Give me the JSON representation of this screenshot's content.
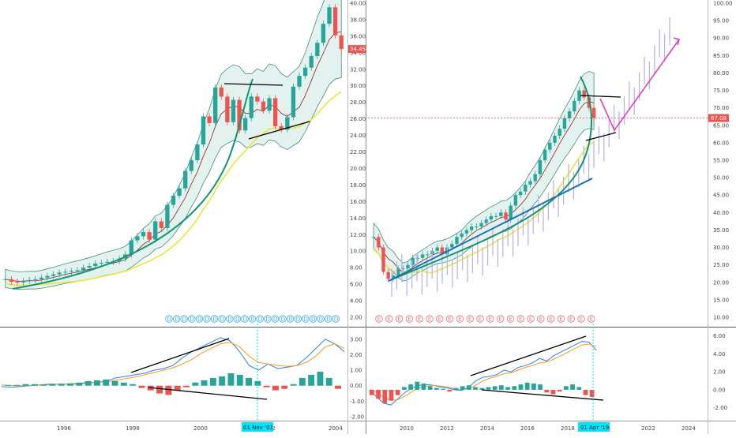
{
  "colors": {
    "up": "#26a69a",
    "down": "#ef5350",
    "band_fill": "#e3f2ef",
    "band_line": "#2e7d6b",
    "ma_red": "#8b2323",
    "ma_yellow": "#e8e83a",
    "arc": "#12966f",
    "macd": "#2f80ed",
    "signal": "#f59a23",
    "trend": "#000000",
    "projection": "#b9b3ee",
    "arrow": "#e040c8",
    "cross": "#00e5ff",
    "dotted": "#e06666",
    "div_marker": "#3fa9f5",
    "earn_marker": "#e57373"
  },
  "left": {
    "price_axis": [
      "40.00",
      "38.00",
      "36.00",
      "34.00",
      "32.00",
      "30.00",
      "28.00",
      "26.00",
      "24.00",
      "22.00",
      "20.00",
      "18.00",
      "16.00",
      "14.00",
      "12.00",
      "10.00",
      "8.00",
      "6.00",
      "4.00",
      "2.00"
    ],
    "last_price": "34.45",
    "osc_axis": [
      "3.00",
      "2.00",
      "1.00",
      "0.00",
      "-1.00",
      "-2.00"
    ],
    "time_axis": [
      "1996",
      "1998",
      "2000",
      "2002",
      "2004"
    ],
    "crosshair_label": "01 Nov '01",
    "event_marker": "D",
    "event_count": 23
  },
  "right": {
    "price_axis": [
      "100.00",
      "95.00",
      "90.00",
      "85.00",
      "80.00",
      "75.00",
      "70.00",
      "65.00",
      "60.00",
      "55.00",
      "50.00",
      "45.00",
      "40.00",
      "35.00",
      "30.00",
      "25.00",
      "20.00",
      "15.00",
      "10.00"
    ],
    "last_price": "67.08",
    "osc_axis": [
      "6.00",
      "4.00",
      "2.00",
      "0.00",
      "-2.00"
    ],
    "time_axis": [
      "2010",
      "2012",
      "2014",
      "2016",
      "2018",
      "2020",
      "2022",
      "2024"
    ],
    "crosshair_label": "01 Apr '19",
    "event_marker": "E",
    "event_count": 22
  },
  "chart_data": [
    {
      "type": "candlestick",
      "panel": "left-price",
      "x_start": 1994.5,
      "x_step": 0.1667,
      "ylim": [
        2,
        40
      ],
      "series": [
        {
          "values": [
            6.6,
            6.3,
            6.2,
            6.4,
            6.5,
            6.6,
            6.8,
            7.0,
            7.2,
            7.4,
            7.5,
            7.6,
            7.7,
            8.0,
            8.2,
            8.5,
            8.6,
            8.7,
            8.8,
            9.1,
            9.6,
            11.3,
            11.8,
            12.3,
            11.4,
            13.6,
            12.8,
            15.6,
            16.7,
            17.6,
            19.7,
            21.0,
            22.9,
            26.3,
            25.5,
            29.8,
            28.7,
            25.6,
            28.3,
            24.6,
            26.1,
            28.7,
            28.1,
            27.0,
            28.5,
            25.1,
            24.7,
            26.2,
            29.9,
            31.2,
            32.2,
            33.6,
            35.2,
            37.5,
            39.5,
            36.1,
            34.45
          ]
        }
      ]
    },
    {
      "type": "candlestick",
      "panel": "right-price",
      "x_start": 2008.6,
      "x_step": 0.1667,
      "ylim": [
        10,
        100
      ],
      "series": [
        {
          "values": [
            33,
            30,
            23,
            21,
            22,
            24,
            24,
            25,
            27,
            27,
            28,
            28,
            29,
            30,
            28,
            30,
            31,
            33,
            34,
            35,
            36,
            36,
            37,
            38,
            39,
            39,
            40,
            38,
            42,
            45,
            46,
            48,
            49,
            51,
            55,
            58,
            60,
            62,
            64,
            67,
            69,
            72,
            75,
            73,
            70,
            67.08
          ]
        }
      ]
    },
    {
      "type": "line",
      "panel": "left-osc",
      "ylim": [
        -2,
        3.5
      ],
      "series": [
        {
          "values": [
            -0.05,
            -0.1,
            -0.05,
            0,
            0.05,
            0.1,
            0.1,
            0.1,
            0.15,
            0.2,
            0.2,
            0.3,
            0.5,
            0.6,
            0.7,
            0.8,
            1.0,
            1.1,
            1.3,
            1.8,
            2.2,
            2.5,
            2.8,
            3.1,
            2.9,
            2.2,
            1.3,
            1.0,
            1.4,
            1.1,
            1.2,
            1.3,
            1.8,
            2.4,
            3.0,
            2.7,
            2.2
          ]
        },
        {
          "values": [
            0.05,
            0,
            0,
            0,
            0.05,
            0.05,
            0.1,
            0.1,
            0.1,
            0.15,
            0.2,
            0.25,
            0.35,
            0.45,
            0.55,
            0.7,
            0.85,
            1.0,
            1.15,
            1.4,
            1.7,
            2.1,
            2.4,
            2.7,
            2.8,
            2.5,
            1.9,
            1.5,
            1.4,
            1.3,
            1.25,
            1.3,
            1.5,
            1.9,
            2.5,
            2.7,
            2.4
          ]
        }
      ]
    },
    {
      "type": "line",
      "panel": "right-osc",
      "ylim": [
        -3,
        6.5
      ],
      "series": [
        {
          "values": [
            0,
            -0.8,
            -1.5,
            -1.7,
            -1.0,
            -0.3,
            0.2,
            0.5,
            0.6,
            0.5,
            0.3,
            0.2,
            0.0,
            -0.1,
            0.3,
            1.0,
            1.4,
            1.5,
            1.7,
            2.2,
            2.0,
            2.5,
            2.7,
            3.0,
            3.5,
            3.2,
            3.8,
            4.2,
            4.6,
            5.0,
            5.4,
            5.3,
            4.4
          ]
        },
        {
          "values": [
            0,
            -0.3,
            -0.8,
            -1.2,
            -1.1,
            -0.7,
            -0.2,
            0.2,
            0.4,
            0.5,
            0.4,
            0.3,
            0.15,
            0.0,
            0.1,
            0.5,
            1.0,
            1.3,
            1.5,
            1.8,
            1.9,
            2.2,
            2.5,
            2.7,
            3.0,
            3.1,
            3.4,
            3.8,
            4.2,
            4.6,
            5.0,
            5.1,
            4.8
          ]
        }
      ]
    },
    {
      "type": "bar",
      "panel": "left-osc-histogram",
      "series": [
        {
          "values": [
            0.05,
            0.05,
            0.1,
            0.1,
            0.08,
            0.1,
            0.12,
            0.15,
            0.2,
            0.3,
            0.35,
            0.4,
            0.3,
            0.2,
            0.1,
            -0.15,
            -0.3,
            -0.5,
            -0.6,
            -0.3,
            -0.1,
            0.2,
            0.35,
            0.5,
            0.6,
            0.8,
            0.7,
            0.5,
            0.3,
            -0.1,
            -0.3,
            -0.2,
            0.1,
            0.5,
            0.7,
            0.9,
            0.5,
            -0.2
          ]
        }
      ]
    },
    {
      "type": "bar",
      "panel": "right-osc-histogram",
      "series": [
        {
          "values": [
            -0.6,
            -1.0,
            -1.5,
            -1.2,
            -0.6,
            0.3,
            0.6,
            0.9,
            0.7,
            0.4,
            0.2,
            0.1,
            -0.2,
            0.2,
            0.4,
            0.5,
            0.3,
            0.2,
            0.3,
            0.4,
            0.5,
            0.3,
            0.4,
            0.6,
            0.8,
            0.7,
            0.6,
            -0.3,
            -0.5,
            -0.2,
            0.4,
            0.6,
            0.3,
            -0.6,
            -0.8
          ]
        }
      ]
    }
  ]
}
